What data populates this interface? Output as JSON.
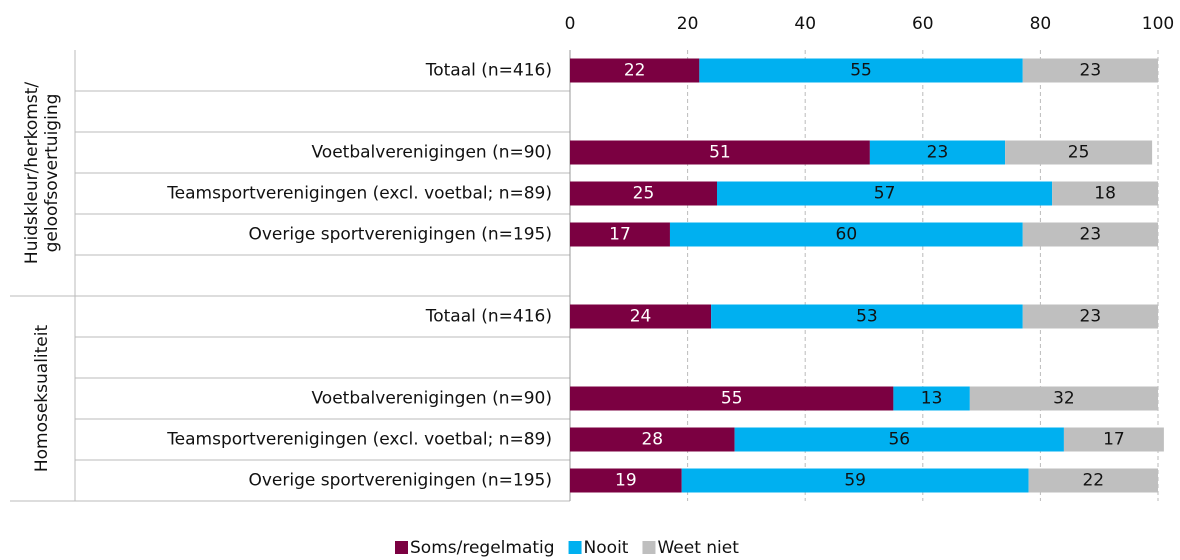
{
  "chart_data": {
    "type": "stacked-bar-horizontal",
    "groups": [
      {
        "name": [
          "Huidskleur/herkomst/",
          "geloofsovertuiging"
        ]
      },
      {
        "name": [
          "Homoseksualiteit"
        ]
      }
    ],
    "categories": [
      "Totaal (n=416)",
      null,
      "Voetbalverenigingen (n=90)",
      "Teamsportverenigingen (excl. voetbal; n=89)",
      "Overige sportverenigingen (n=195)",
      null,
      "Totaal (n=416)",
      null,
      "Voetbalverenigingen (n=90)",
      "Teamsportverenigingen (excl. voetbal; n=89)",
      "Overige sportverenigingen (n=195)"
    ],
    "series": [
      {
        "name": "Soms/regelmatig",
        "color": "#7b0041",
        "values": [
          22,
          null,
          51,
          25,
          17,
          null,
          24,
          null,
          55,
          28,
          19
        ]
      },
      {
        "name": "Nooit",
        "color": "#00b0f0",
        "values": [
          55,
          null,
          23,
          57,
          60,
          null,
          53,
          null,
          13,
          56,
          59
        ]
      },
      {
        "name": "Weet niet",
        "color": "#bfbfbf",
        "values": [
          23,
          null,
          25,
          18,
          23,
          null,
          23,
          null,
          32,
          17,
          22
        ]
      }
    ],
    "xlim": [
      0,
      100
    ],
    "xticks": [
      0,
      20,
      40,
      60,
      80,
      100
    ],
    "grid": true,
    "legend": "bottom"
  }
}
